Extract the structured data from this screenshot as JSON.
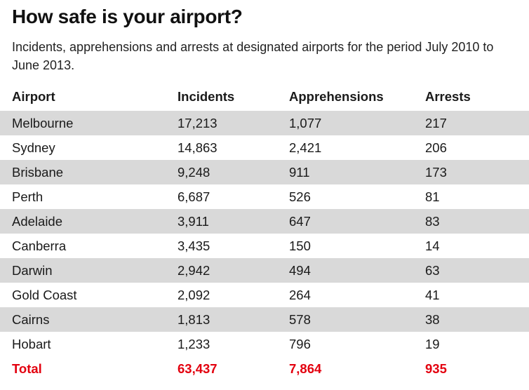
{
  "title": "How safe is your airport?",
  "subtitle": "Incidents, apprehensions and arrests at designated airports for the period July 2010 to June 2013.",
  "colors": {
    "shade": "#d9d9d9",
    "total": "#e3000f"
  },
  "table": {
    "headers": [
      "Airport",
      "Incidents",
      "Apprehensions",
      "Arrests"
    ],
    "rows": [
      [
        "Melbourne",
        "17,213",
        "1,077",
        "217"
      ],
      [
        "Sydney",
        "14,863",
        "2,421",
        "206"
      ],
      [
        "Brisbane",
        "9,248",
        "911",
        "173"
      ],
      [
        "Perth",
        "6,687",
        "526",
        "81"
      ],
      [
        "Adelaide",
        "3,911",
        "647",
        "83"
      ],
      [
        "Canberra",
        "3,435",
        "150",
        "14"
      ],
      [
        "Darwin",
        "2,942",
        "494",
        "63"
      ],
      [
        "Gold Coast",
        "2,092",
        "264",
        "41"
      ],
      [
        "Cairns",
        "1,813",
        "578",
        "38"
      ],
      [
        "Hobart",
        "1,233",
        "796",
        "19"
      ]
    ],
    "total": [
      "Total",
      "63,437",
      "7,864",
      "935"
    ]
  }
}
